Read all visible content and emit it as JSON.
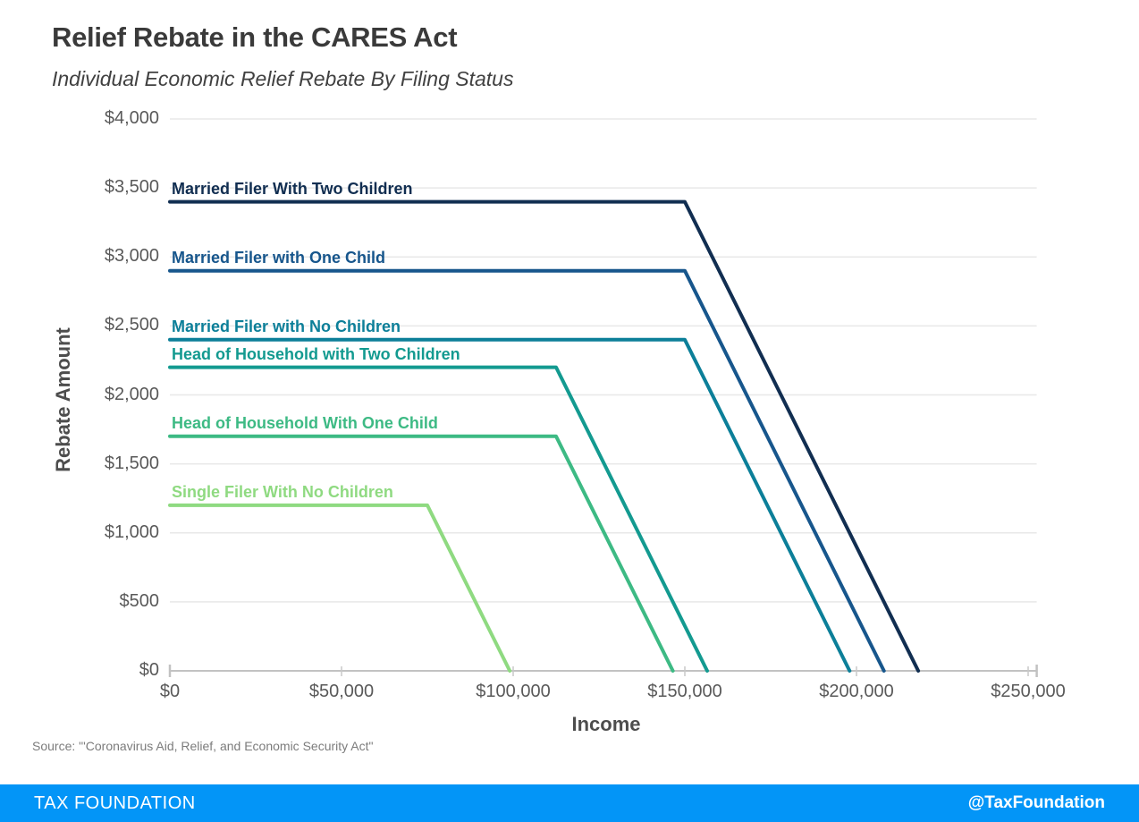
{
  "header": {
    "title": "Relief Rebate in the CARES Act",
    "subtitle": "Individual Economic Relief Rebate By Filing Status"
  },
  "source": {
    "text": "Source: \"'Coronavirus Aid, Relief, and Economic Security Act\""
  },
  "footer": {
    "brand": "TAX FOUNDATION",
    "handle": "@TaxFoundation",
    "bg_color": "#0395f7",
    "text_color": "#ffffff"
  },
  "chart_data": {
    "type": "line",
    "title": "Relief Rebate in the CARES Act",
    "subtitle": "Individual Economic Relief Rebate By Filing Status",
    "xlabel": "Income",
    "ylabel": "Rebate Amount",
    "xlim": [
      0,
      252500
    ],
    "ylim": [
      0,
      4000
    ],
    "grid": "horizontal",
    "legend": "inline-colored-labels",
    "colors": {
      "gridline": "#e8e8e8",
      "axis": "#c2c2c2",
      "tick_text": "#595959",
      "axis_title_text": "#4d4d4d"
    },
    "x_ticks": [
      {
        "value": 0,
        "label": "$0"
      },
      {
        "value": 50000,
        "label": "$50,000"
      },
      {
        "value": 100000,
        "label": "$100,000"
      },
      {
        "value": 150000,
        "label": "$150,000"
      },
      {
        "value": 200000,
        "label": "$200,000"
      },
      {
        "value": 250000,
        "label": "$250,000"
      }
    ],
    "y_ticks": [
      {
        "value": 0,
        "label": "$0"
      },
      {
        "value": 500,
        "label": "$500"
      },
      {
        "value": 1000,
        "label": "$1,000"
      },
      {
        "value": 1500,
        "label": "$1,500"
      },
      {
        "value": 2000,
        "label": "$2,000"
      },
      {
        "value": 2500,
        "label": "$2,500"
      },
      {
        "value": 3000,
        "label": "$3,000"
      },
      {
        "value": 3500,
        "label": "$3,500"
      },
      {
        "value": 4000,
        "label": "$4,000"
      }
    ],
    "series": [
      {
        "name": "Married Filer With Two Children",
        "color": "#112e51",
        "flat_value": 3400,
        "points": [
          [
            0,
            3400
          ],
          [
            150000,
            3400
          ],
          [
            218000,
            0
          ]
        ]
      },
      {
        "name": "Married Filer with One Child",
        "color": "#17568c",
        "flat_value": 2900,
        "points": [
          [
            0,
            2900
          ],
          [
            150000,
            2900
          ],
          [
            208000,
            0
          ]
        ]
      },
      {
        "name": "Married Filer with No Children",
        "color": "#0c7f99",
        "flat_value": 2400,
        "points": [
          [
            0,
            2400
          ],
          [
            150000,
            2400
          ],
          [
            198000,
            0
          ]
        ]
      },
      {
        "name": "Head of Household with Two Children",
        "color": "#139a90",
        "flat_value": 2200,
        "points": [
          [
            0,
            2200
          ],
          [
            112500,
            2200
          ],
          [
            156500,
            0
          ]
        ]
      },
      {
        "name": "Head of Household With One Child",
        "color": "#3dba84",
        "flat_value": 1700,
        "points": [
          [
            0,
            1700
          ],
          [
            112500,
            1700
          ],
          [
            146500,
            0
          ]
        ]
      },
      {
        "name": "Single Filer With No Children",
        "color": "#8fda81",
        "flat_value": 1200,
        "points": [
          [
            0,
            1200
          ],
          [
            75000,
            1200
          ],
          [
            99000,
            0
          ]
        ]
      }
    ]
  }
}
